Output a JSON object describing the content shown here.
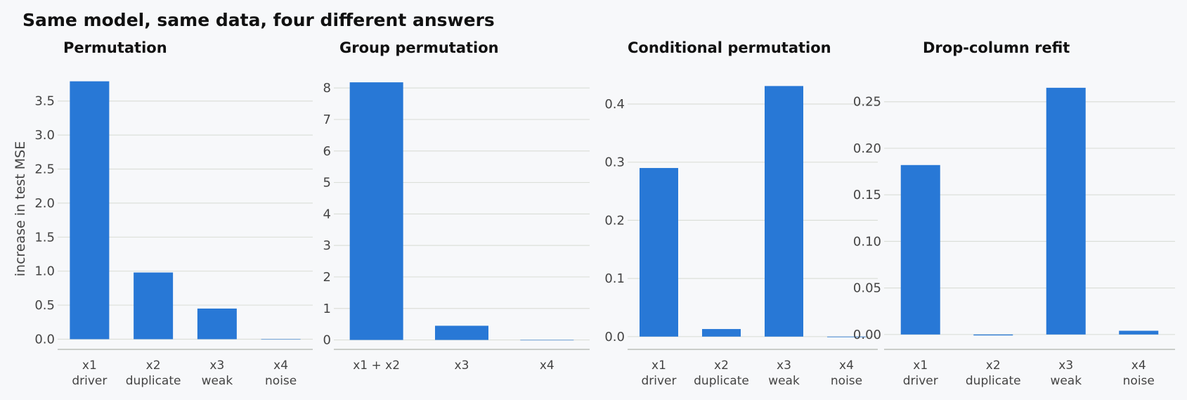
{
  "title": "Same model, same data, four different answers",
  "chart_data": [
    {
      "type": "bar",
      "title": "Permutation",
      "ylabel": "increase in test MSE",
      "categories": [
        "x1\ndriver",
        "x2\nduplicate",
        "x3\nweak",
        "x4\nnoise"
      ],
      "values": [
        3.79,
        0.98,
        0.45,
        0.0
      ],
      "ylim": [
        -0.15,
        3.9
      ],
      "yticks": [
        "0.0",
        "0.5",
        "1.0",
        "1.5",
        "2.0",
        "2.5",
        "3.0",
        "3.5"
      ],
      "grid": true,
      "color": "#2878d6"
    },
    {
      "type": "bar",
      "title": "Group permutation",
      "ylabel": "",
      "categories": [
        "x1 + x2",
        "x3",
        "x4"
      ],
      "values": [
        8.18,
        0.45,
        0.0
      ],
      "ylim": [
        -0.3,
        8.45
      ],
      "yticks": [
        "0",
        "1",
        "2",
        "3",
        "4",
        "5",
        "6",
        "7",
        "8"
      ],
      "grid": true,
      "color": "#2878d6"
    },
    {
      "type": "bar",
      "title": "Conditional permutation",
      "ylabel": "",
      "categories": [
        "x1\ndriver",
        "x2\nduplicate",
        "x3\nweak",
        "x4\nnoise"
      ],
      "values": [
        0.29,
        0.013,
        0.431,
        -0.001
      ],
      "ylim": [
        -0.022,
        0.452
      ],
      "yticks": [
        "0.0",
        "0.1",
        "0.2",
        "0.3",
        "0.4"
      ],
      "grid": true,
      "color": "#2878d6"
    },
    {
      "type": "bar",
      "title": "Drop-column refit",
      "ylabel": "",
      "categories": [
        "x1\ndriver",
        "x2\nduplicate",
        "x3\nweak",
        "x4\nnoise"
      ],
      "values": [
        0.182,
        -0.001,
        0.265,
        0.004
      ],
      "ylim": [
        -0.016,
        0.28
      ],
      "yticks": [
        "0.00",
        "0.05",
        "0.10",
        "0.15",
        "0.20",
        "0.25"
      ],
      "grid": true,
      "color": "#2878d6"
    }
  ]
}
